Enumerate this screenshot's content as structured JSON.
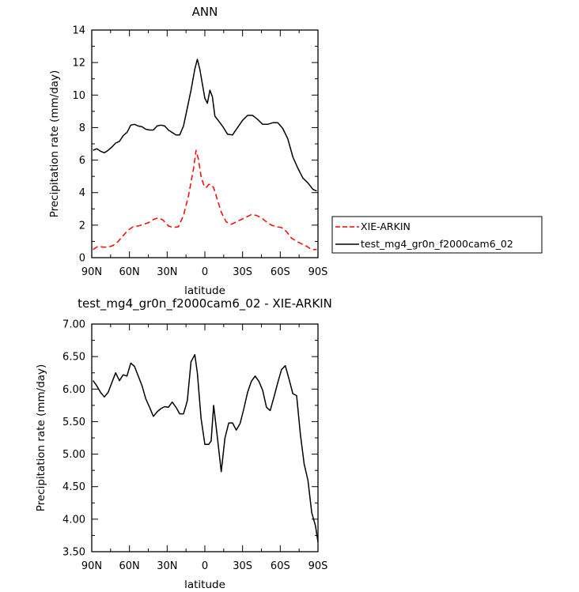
{
  "chart_data": [
    {
      "type": "line",
      "title": "ANN",
      "xlabel": "latitude",
      "ylabel": "Precipitation rate (mm/day)",
      "xlim": [
        90,
        -90
      ],
      "ylim": [
        0,
        14
      ],
      "x_ticks": [
        90,
        60,
        30,
        0,
        -30,
        -60,
        -90
      ],
      "x_tick_labels": [
        "90N",
        "60N",
        "30N",
        "0",
        "30S",
        "60S",
        "90S"
      ],
      "y_ticks": [
        0,
        2,
        4,
        6,
        8,
        10,
        12,
        14
      ],
      "y_tick_labels": [
        "0",
        "2",
        "4",
        "6",
        "8",
        "10",
        "12",
        "14"
      ],
      "legend_position": "right",
      "series": [
        {
          "name": "XIE-ARKIN",
          "color": "#ff0000",
          "dash": "dashed",
          "x": [
            89,
            85,
            81,
            77,
            73,
            69,
            65,
            61,
            57,
            53,
            49,
            45,
            41,
            37,
            33,
            29,
            25,
            21,
            17,
            13,
            9,
            7,
            5,
            3,
            1,
            -1,
            -3,
            -5,
            -7,
            -9,
            -13,
            -17,
            -21,
            -25,
            -29,
            -33,
            -37,
            -41,
            -45,
            -49,
            -53,
            -57,
            -61,
            -65,
            -69,
            -73,
            -77,
            -81,
            -85,
            -89
          ],
          "y": [
            0.5,
            0.7,
            0.65,
            0.65,
            0.75,
            1.0,
            1.35,
            1.7,
            1.9,
            1.95,
            2.05,
            2.15,
            2.35,
            2.45,
            2.3,
            1.95,
            1.85,
            1.9,
            2.6,
            3.8,
            5.5,
            6.6,
            6.0,
            5.0,
            4.5,
            4.3,
            4.5,
            4.5,
            4.3,
            3.8,
            2.8,
            2.2,
            2.05,
            2.2,
            2.35,
            2.5,
            2.65,
            2.6,
            2.45,
            2.2,
            2.0,
            1.9,
            1.85,
            1.6,
            1.2,
            1.0,
            0.85,
            0.7,
            0.5,
            0.5
          ]
        },
        {
          "name": "test_mg4_gr0n_f2000cam6_02",
          "color": "#000000",
          "dash": "solid",
          "x": [
            89,
            86,
            83,
            80,
            77,
            74,
            71,
            68,
            65,
            62,
            59,
            56,
            53,
            50,
            47,
            44,
            41,
            38,
            35,
            32,
            29,
            26,
            23,
            20,
            17,
            14,
            11,
            8,
            6,
            4,
            2,
            0,
            -2,
            -4,
            -6,
            -8,
            -10,
            -14,
            -18,
            -22,
            -26,
            -30,
            -34,
            -38,
            -42,
            -46,
            -50,
            -54,
            -58,
            -62,
            -66,
            -70,
            -74,
            -78,
            -82,
            -86,
            -89
          ],
          "y": [
            6.6,
            6.7,
            6.55,
            6.45,
            6.6,
            6.8,
            7.05,
            7.15,
            7.5,
            7.7,
            8.15,
            8.2,
            8.1,
            8.05,
            7.9,
            7.85,
            7.85,
            8.1,
            8.15,
            8.1,
            7.85,
            7.7,
            7.55,
            7.55,
            8.1,
            9.2,
            10.3,
            11.6,
            12.2,
            11.6,
            10.7,
            9.8,
            9.5,
            10.3,
            9.9,
            8.7,
            8.5,
            8.1,
            7.6,
            7.55,
            8.0,
            8.45,
            8.75,
            8.75,
            8.5,
            8.2,
            8.2,
            8.3,
            8.3,
            7.95,
            7.3,
            6.2,
            5.5,
            4.9,
            4.6,
            4.2,
            4.1
          ]
        }
      ]
    },
    {
      "type": "line",
      "title": "test_mg4_gr0n_f2000cam6_02 - XIE-ARKIN",
      "xlabel": "latitude",
      "ylabel": "Precipitation rate (mm/day)",
      "xlim": [
        90,
        -90
      ],
      "ylim": [
        3.5,
        7.0
      ],
      "x_ticks": [
        90,
        60,
        30,
        0,
        -30,
        -60,
        -90
      ],
      "x_tick_labels": [
        "90N",
        "60N",
        "30N",
        "0",
        "30S",
        "60S",
        "90S"
      ],
      "y_ticks": [
        3.5,
        4.0,
        4.5,
        5.0,
        5.5,
        6.0,
        6.5,
        7.0
      ],
      "y_tick_labels": [
        "3.50",
        "4.00",
        "4.50",
        "5.00",
        "5.50",
        "6.00",
        "6.50",
        "7.00"
      ],
      "series": [
        {
          "color": "#000000",
          "dash": "solid",
          "x": [
            89,
            86,
            83,
            80,
            77,
            74,
            71,
            68,
            65,
            62,
            59,
            56,
            53,
            50,
            47,
            44,
            41,
            38,
            35,
            32,
            29,
            26,
            23,
            20,
            17,
            14,
            11,
            8,
            6,
            3,
            0,
            -3,
            -5,
            -7,
            -10,
            -13,
            -16,
            -19,
            -22,
            -25,
            -28,
            -31,
            -34,
            -37,
            -40,
            -43,
            -46,
            -49,
            -52,
            -55,
            -58,
            -61,
            -64,
            -67,
            -70,
            -73,
            -76,
            -79,
            -82,
            -85,
            -88,
            -90
          ],
          "y": [
            6.13,
            6.05,
            5.95,
            5.88,
            5.95,
            6.1,
            6.25,
            6.13,
            6.22,
            6.2,
            6.4,
            6.35,
            6.2,
            6.05,
            5.85,
            5.72,
            5.58,
            5.65,
            5.7,
            5.73,
            5.72,
            5.8,
            5.72,
            5.62,
            5.62,
            5.82,
            6.42,
            6.53,
            6.25,
            5.55,
            5.15,
            5.15,
            5.2,
            5.75,
            5.25,
            4.73,
            5.25,
            5.48,
            5.48,
            5.37,
            5.47,
            5.7,
            5.95,
            6.12,
            6.2,
            6.12,
            5.98,
            5.72,
            5.67,
            5.88,
            6.1,
            6.3,
            6.36,
            6.15,
            5.93,
            5.9,
            5.3,
            4.85,
            4.6,
            4.1,
            3.9,
            3.65
          ]
        }
      ]
    }
  ]
}
